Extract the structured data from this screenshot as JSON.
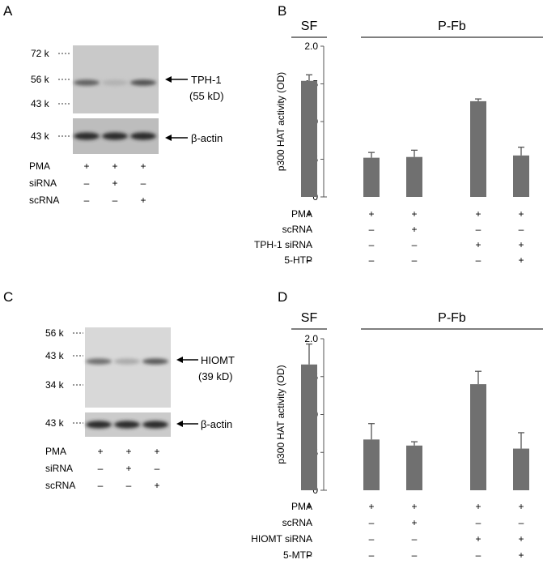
{
  "panels": {
    "A": {
      "letter": "A",
      "markers": [
        "72 k",
        "56 k",
        "43 k"
      ],
      "actin_marker": "43 k",
      "band_label": "TPH-1",
      "band_sub": "(55 kD)",
      "actin_label": "β-actin",
      "band_intensity": [
        0.7,
        0.15,
        0.8
      ],
      "conditions": [
        {
          "name": "PMA",
          "signs": [
            "+",
            "+",
            "+"
          ]
        },
        {
          "name": "siRNA",
          "signs": [
            "–",
            "+",
            "–"
          ]
        },
        {
          "name": "scRNA",
          "signs": [
            "–",
            "–",
            "+"
          ]
        }
      ]
    },
    "C": {
      "letter": "C",
      "markers": [
        "56 k",
        "43 k",
        "34 k"
      ],
      "actin_marker": "43 k",
      "band_label": "HIOMT",
      "band_sub": "(39 kD)",
      "actin_label": "β-actin",
      "band_intensity": [
        0.6,
        0.2,
        0.75
      ],
      "conditions": [
        {
          "name": "PMA",
          "signs": [
            "+",
            "+",
            "+"
          ]
        },
        {
          "name": "siRNA",
          "signs": [
            "–",
            "+",
            "–"
          ]
        },
        {
          "name": "scRNA",
          "signs": [
            "–",
            "–",
            "+"
          ]
        }
      ]
    }
  },
  "chart_data": [
    {
      "panel": "B",
      "type": "bar",
      "ylabel": "p300 HAT activity (OD)",
      "ylim": [
        0,
        2.0
      ],
      "yticks": [
        "0",
        "0.5",
        "1.0",
        "1.5",
        "2.0"
      ],
      "values": [
        1.54,
        0.52,
        0.53,
        1.27,
        0.55
      ],
      "errors": [
        0.08,
        0.07,
        0.09,
        0.03,
        0.11
      ],
      "bar_color": "#707070",
      "groups": [
        {
          "label": "SF",
          "from": 0,
          "to": 0
        },
        {
          "label": "P-Fb",
          "from": 1,
          "to": 4
        }
      ],
      "conditions": [
        {
          "name": "PMA",
          "signs": [
            "+",
            "+",
            "+",
            "+",
            "+"
          ]
        },
        {
          "name": "scRNA",
          "signs": [
            "–",
            "–",
            "+",
            "–",
            "–"
          ]
        },
        {
          "name": "TPH-1 siRNA",
          "signs": [
            "–",
            "–",
            "–",
            "+",
            "+"
          ]
        },
        {
          "name": "5-HTP",
          "signs": [
            "–",
            "–",
            "–",
            "–",
            "+"
          ]
        }
      ]
    },
    {
      "panel": "D",
      "type": "bar",
      "ylabel": "p300 HAT activity (OD)",
      "ylim": [
        0,
        2.0
      ],
      "yticks": [
        "0",
        "0.5",
        "1.0",
        "1.5",
        "2.0"
      ],
      "values": [
        1.66,
        0.67,
        0.59,
        1.4,
        0.55
      ],
      "errors": [
        0.27,
        0.21,
        0.05,
        0.17,
        0.21
      ],
      "bar_color": "#707070",
      "groups": [
        {
          "label": "SF",
          "from": 0,
          "to": 0
        },
        {
          "label": "P-Fb",
          "from": 1,
          "to": 4
        }
      ],
      "conditions": [
        {
          "name": "PMA",
          "signs": [
            "+",
            "+",
            "+",
            "+",
            "+"
          ]
        },
        {
          "name": "scRNA",
          "signs": [
            "–",
            "–",
            "+",
            "–",
            "–"
          ]
        },
        {
          "name": "HIOMT siRNA",
          "signs": [
            "–",
            "–",
            "–",
            "+",
            "+"
          ]
        },
        {
          "name": "5-MTP",
          "signs": [
            "–",
            "–",
            "–",
            "–",
            "+"
          ]
        }
      ]
    }
  ]
}
